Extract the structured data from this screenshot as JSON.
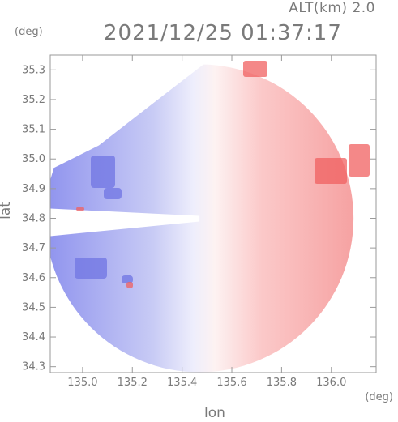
{
  "header": {
    "altitude_label": "ALT(km) 2.0",
    "timestamp": "2021/12/25 01:37:17"
  },
  "chart_data": {
    "type": "heatmap",
    "title": "2021/12/25 01:37:17",
    "xlabel": "lon",
    "ylabel": "lat",
    "x_unit": "(deg)",
    "y_unit": "(deg)",
    "xlim": [
      134.87,
      136.18
    ],
    "ylim": [
      34.28,
      35.35
    ],
    "x_ticks": [
      {
        "value": 135.0,
        "label": "135.0"
      },
      {
        "value": 135.2,
        "label": "135.2"
      },
      {
        "value": 135.4,
        "label": "135.4"
      },
      {
        "value": 135.6,
        "label": "135.6"
      },
      {
        "value": 135.8,
        "label": "135.8"
      },
      {
        "value": 136.0,
        "label": "136.0"
      }
    ],
    "y_ticks": [
      {
        "value": 34.3,
        "label": "34.3"
      },
      {
        "value": 34.4,
        "label": "34.4"
      },
      {
        "value": 34.5,
        "label": "34.5"
      },
      {
        "value": 34.6,
        "label": "34.6"
      },
      {
        "value": 34.7,
        "label": "34.7"
      },
      {
        "value": 34.8,
        "label": "34.8"
      },
      {
        "value": 34.9,
        "label": "34.9"
      },
      {
        "value": 35.0,
        "label": "35.0"
      },
      {
        "value": 35.1,
        "label": "35.1"
      },
      {
        "value": 35.2,
        "label": "35.2"
      },
      {
        "value": 35.3,
        "label": "35.3"
      }
    ],
    "radar_center": {
      "lon": 135.47,
      "lat": 34.8
    },
    "colors": {
      "approaching": "#6f74e6",
      "receding": "#f05a5a",
      "near_zero": "#ffffff",
      "frame": "#9a9a9a"
    }
  }
}
